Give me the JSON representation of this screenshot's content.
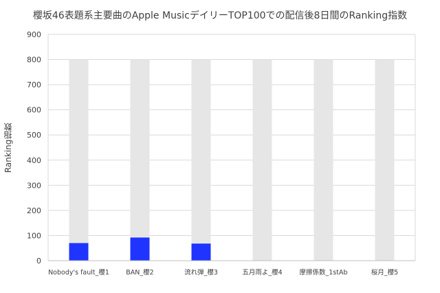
{
  "chart_data": {
    "type": "bar",
    "title": "櫻坂46表題系主要曲のApple MusicデイリーTOP100での配信後8日間のRanking指数",
    "xlabel": "",
    "ylabel": "Ranking指数",
    "categories": [
      "Nobody's fault_櫻1",
      "BAN_櫻2",
      "流れ弾_櫻3",
      "五月雨よ_櫻4",
      "摩擦係数_1stAb",
      "桜月_櫻5"
    ],
    "series": [
      {
        "name": "",
        "role": "max",
        "color": "#e6e6e6",
        "values": [
          800,
          800,
          800,
          800,
          800,
          800
        ]
      },
      {
        "name": "",
        "role": "value",
        "color": "#1f35ff",
        "values": [
          70,
          92,
          68,
          0,
          0,
          0
        ]
      }
    ],
    "ylim": [
      0,
      900
    ],
    "yticks": [
      0,
      100,
      200,
      300,
      400,
      500,
      600,
      700,
      800,
      900
    ],
    "grid": true,
    "legend": "none"
  }
}
